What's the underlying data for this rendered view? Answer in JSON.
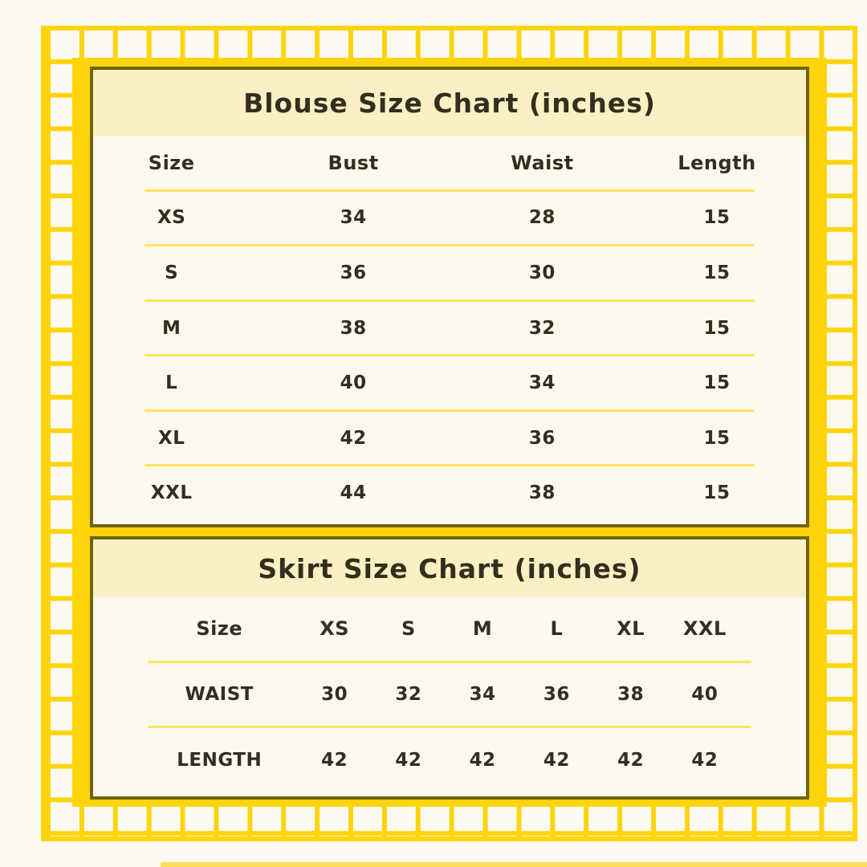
{
  "page_background": "#FCFAF2",
  "colors": {
    "gold_frame": "#FFD40A",
    "table_border": "#6F640E",
    "title_band": "#FAF0C3",
    "table_body": "#FBF9EE",
    "row_separator": "#FFE45E",
    "text": "#332E1E",
    "bottom_accent_line": "#FFDD55"
  },
  "chart_data": [
    {
      "type": "table",
      "title": "Blouse Size Chart (inches)",
      "columns": [
        "Size",
        "Bust",
        "Waist",
        "Length"
      ],
      "rows": [
        [
          "XS",
          "34",
          "28",
          "15"
        ],
        [
          "S",
          "36",
          "30",
          "15"
        ],
        [
          "M",
          "38",
          "32",
          "15"
        ],
        [
          "L",
          "40",
          "34",
          "15"
        ],
        [
          "XL",
          "42",
          "36",
          "15"
        ],
        [
          "XXL",
          "44",
          "38",
          "15"
        ]
      ]
    },
    {
      "type": "table",
      "title": "Skirt Size Chart (inches)",
      "columns": [
        "Size",
        "XS",
        "S",
        "M",
        "L",
        "XL",
        "XXL"
      ],
      "rows": [
        [
          "WAIST",
          "30",
          "32",
          "34",
          "36",
          "38",
          "40"
        ],
        [
          "LENGTH",
          "42",
          "42",
          "42",
          "42",
          "42",
          "42"
        ]
      ]
    }
  ]
}
